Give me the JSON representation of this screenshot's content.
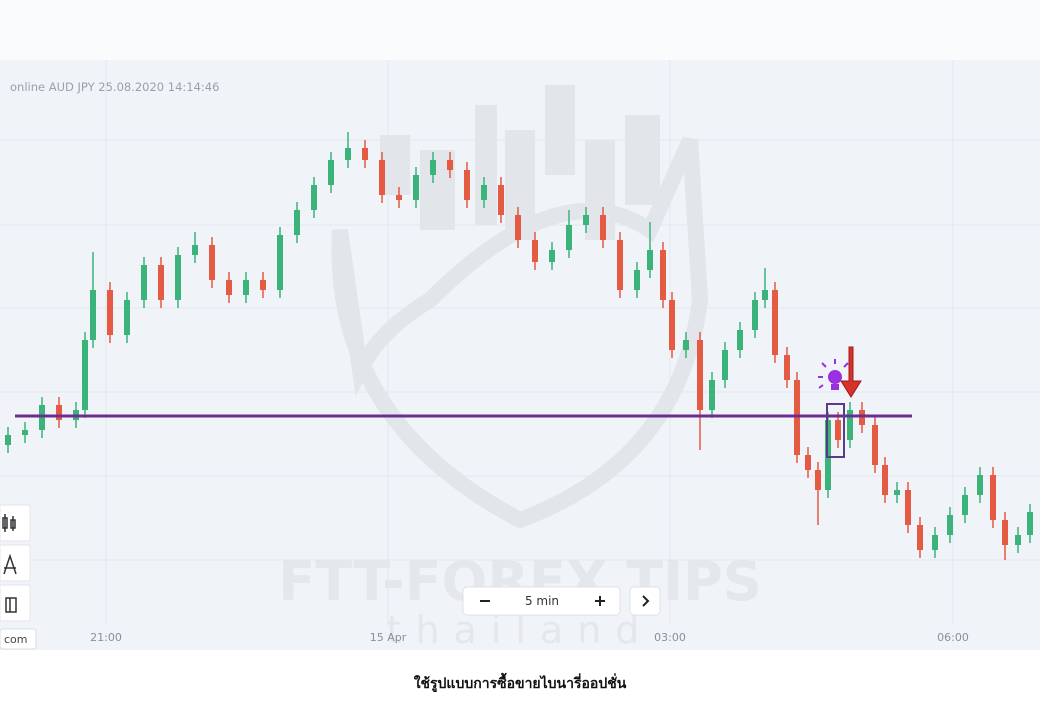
{
  "header": {
    "title": "online AUD JPY 25.08.2020 14:14:46"
  },
  "time_axis": {
    "labels": [
      "21:00",
      "15 Apr",
      "03:00",
      "06:00"
    ]
  },
  "zoom": {
    "interval": "5 min"
  },
  "sidebar": {
    "label": "com"
  },
  "watermark": {
    "brand": "FTT-FOREX TIPS",
    "subtitle": "thailand"
  },
  "caption": "ใช้รูปแบบการซื้อขายไบนารี่ออปชั่น"
}
